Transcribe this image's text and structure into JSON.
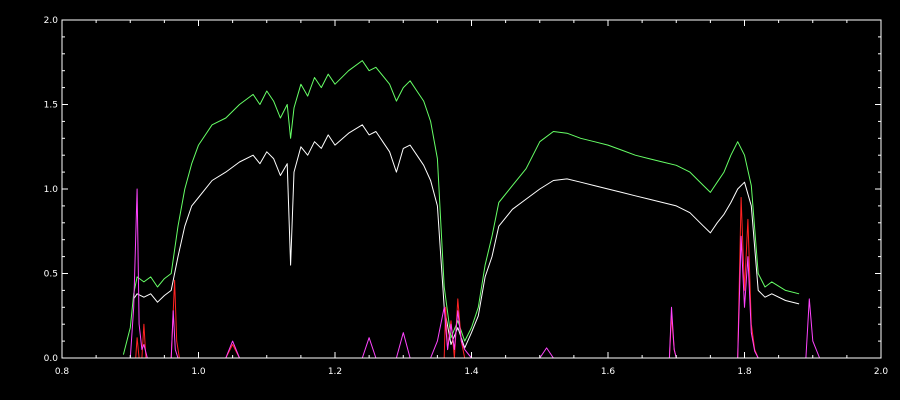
{
  "chart_data": {
    "type": "line",
    "title": "",
    "xlabel": "",
    "ylabel": "",
    "xlim": [
      0.8,
      2.0
    ],
    "ylim": [
      0.0,
      2.0
    ],
    "x_ticks": [
      0.8,
      1.0,
      1.2,
      1.4,
      1.6,
      1.8,
      2.0
    ],
    "x_tick_labels": [
      "0.8",
      "1.0",
      "1.2",
      "1.4",
      "1.6",
      "1.8",
      "2.0"
    ],
    "y_ticks": [
      0.0,
      0.5,
      1.0,
      1.5,
      2.0
    ],
    "y_tick_labels": [
      "0.0",
      "0.5",
      "1.0",
      "1.5",
      "2.0"
    ],
    "grid": false,
    "background": "#000000",
    "series": [
      {
        "color": "#66ff66",
        "x": [
          0.89,
          0.9,
          0.905,
          0.91,
          0.92,
          0.93,
          0.94,
          0.95,
          0.96,
          0.97,
          0.98,
          0.99,
          1.0,
          1.02,
          1.04,
          1.06,
          1.08,
          1.09,
          1.1,
          1.11,
          1.12,
          1.13,
          1.135,
          1.14,
          1.15,
          1.16,
          1.17,
          1.18,
          1.19,
          1.2,
          1.22,
          1.24,
          1.25,
          1.26,
          1.28,
          1.29,
          1.3,
          1.31,
          1.32,
          1.33,
          1.34,
          1.35,
          1.36,
          1.37,
          1.38,
          1.39,
          1.4,
          1.41,
          1.42,
          1.43,
          1.44,
          1.46,
          1.48,
          1.5,
          1.52,
          1.54,
          1.56,
          1.58,
          1.6,
          1.62,
          1.64,
          1.66,
          1.68,
          1.7,
          1.72,
          1.74,
          1.75,
          1.76,
          1.77,
          1.78,
          1.79,
          1.8,
          1.81,
          1.82,
          1.83,
          1.84,
          1.86,
          1.88
        ],
        "y": [
          0.02,
          0.18,
          0.38,
          0.48,
          0.45,
          0.48,
          0.42,
          0.47,
          0.5,
          0.78,
          1.0,
          1.15,
          1.26,
          1.38,
          1.42,
          1.5,
          1.56,
          1.5,
          1.58,
          1.52,
          1.42,
          1.5,
          1.3,
          1.48,
          1.62,
          1.55,
          1.66,
          1.6,
          1.68,
          1.62,
          1.7,
          1.76,
          1.7,
          1.72,
          1.62,
          1.52,
          1.6,
          1.64,
          1.58,
          1.52,
          1.4,
          1.18,
          0.42,
          0.12,
          0.22,
          0.1,
          0.18,
          0.3,
          0.55,
          0.72,
          0.92,
          1.02,
          1.12,
          1.28,
          1.34,
          1.33,
          1.3,
          1.28,
          1.26,
          1.23,
          1.2,
          1.18,
          1.16,
          1.14,
          1.1,
          1.02,
          0.98,
          1.04,
          1.1,
          1.2,
          1.28,
          1.2,
          1.02,
          0.5,
          0.42,
          0.45,
          0.4,
          0.38
        ]
      },
      {
        "color": "#ffffff",
        "x": [
          0.905,
          0.91,
          0.92,
          0.93,
          0.94,
          0.95,
          0.96,
          0.97,
          0.98,
          0.99,
          1.0,
          1.02,
          1.04,
          1.06,
          1.08,
          1.09,
          1.1,
          1.11,
          1.12,
          1.13,
          1.135,
          1.14,
          1.15,
          1.16,
          1.17,
          1.18,
          1.19,
          1.2,
          1.22,
          1.24,
          1.25,
          1.26,
          1.28,
          1.29,
          1.3,
          1.31,
          1.32,
          1.33,
          1.34,
          1.35,
          1.36,
          1.37,
          1.38,
          1.39,
          1.4,
          1.41,
          1.42,
          1.43,
          1.44,
          1.46,
          1.48,
          1.5,
          1.52,
          1.54,
          1.56,
          1.58,
          1.6,
          1.62,
          1.64,
          1.66,
          1.68,
          1.7,
          1.72,
          1.74,
          1.75,
          1.76,
          1.77,
          1.78,
          1.79,
          1.8,
          1.81,
          1.82,
          1.83,
          1.84,
          1.86,
          1.88
        ],
        "y": [
          0.35,
          0.38,
          0.36,
          0.38,
          0.33,
          0.37,
          0.4,
          0.6,
          0.78,
          0.9,
          0.95,
          1.05,
          1.1,
          1.16,
          1.2,
          1.15,
          1.22,
          1.18,
          1.08,
          1.15,
          0.55,
          1.1,
          1.25,
          1.2,
          1.28,
          1.24,
          1.32,
          1.26,
          1.33,
          1.38,
          1.32,
          1.34,
          1.22,
          1.1,
          1.24,
          1.26,
          1.2,
          1.14,
          1.05,
          0.9,
          0.3,
          0.08,
          0.18,
          0.06,
          0.15,
          0.25,
          0.48,
          0.6,
          0.78,
          0.88,
          0.94,
          1.0,
          1.05,
          1.06,
          1.04,
          1.02,
          1.0,
          0.98,
          0.96,
          0.94,
          0.92,
          0.9,
          0.86,
          0.78,
          0.74,
          0.8,
          0.85,
          0.92,
          1.0,
          1.04,
          0.9,
          0.4,
          0.36,
          0.38,
          0.34,
          0.32
        ]
      },
      {
        "color": "#ff2222",
        "x": [
          0.9,
          0.908,
          0.91,
          0.913,
          0.917,
          0.92,
          0.923,
          0.928,
          0.96,
          0.965,
          0.968,
          0.972,
          1.04,
          1.05,
          1.06,
          1.34,
          1.36,
          1.362,
          1.365,
          1.37,
          1.375,
          1.38,
          1.385,
          1.39,
          1.69,
          1.693,
          1.697,
          1.7,
          1.79,
          1.795,
          1.8,
          1.805,
          1.81,
          1.815,
          1.82,
          1.9
        ],
        "y": [
          0.0,
          0.0,
          0.12,
          0.0,
          0.0,
          0.2,
          0.0,
          0.0,
          0.0,
          0.46,
          0.1,
          0.0,
          0.0,
          0.08,
          0.0,
          0.0,
          0.0,
          0.3,
          0.05,
          0.22,
          0.0,
          0.35,
          0.1,
          0.0,
          0.0,
          0.25,
          0.05,
          0.0,
          0.0,
          0.95,
          0.4,
          0.82,
          0.2,
          0.05,
          0.0,
          0.0
        ]
      },
      {
        "color": "#ff44ff",
        "x": [
          0.88,
          0.9,
          0.905,
          0.91,
          0.913,
          0.917,
          0.92,
          0.925,
          0.96,
          0.963,
          0.966,
          0.97,
          1.04,
          1.05,
          1.06,
          1.24,
          1.25,
          1.26,
          1.29,
          1.3,
          1.31,
          1.34,
          1.35,
          1.36,
          1.365,
          1.37,
          1.375,
          1.38,
          1.385,
          1.39,
          1.4,
          1.5,
          1.51,
          1.52,
          1.69,
          1.693,
          1.697,
          1.7,
          1.79,
          1.795,
          1.8,
          1.805,
          1.81,
          1.815,
          1.82,
          1.89,
          1.895,
          1.9,
          1.91,
          1.95
        ],
        "y": [
          0.0,
          0.0,
          0.3,
          1.0,
          0.2,
          0.05,
          0.08,
          0.0,
          0.0,
          0.28,
          0.05,
          0.0,
          0.0,
          0.1,
          0.0,
          0.0,
          0.12,
          0.0,
          0.0,
          0.15,
          0.0,
          0.0,
          0.1,
          0.3,
          0.05,
          0.2,
          0.05,
          0.28,
          0.1,
          0.05,
          0.0,
          0.0,
          0.06,
          0.0,
          0.0,
          0.3,
          0.05,
          0.0,
          0.0,
          0.72,
          0.3,
          0.6,
          0.15,
          0.04,
          0.0,
          0.0,
          0.35,
          0.1,
          0.0,
          0.0
        ]
      }
    ]
  }
}
